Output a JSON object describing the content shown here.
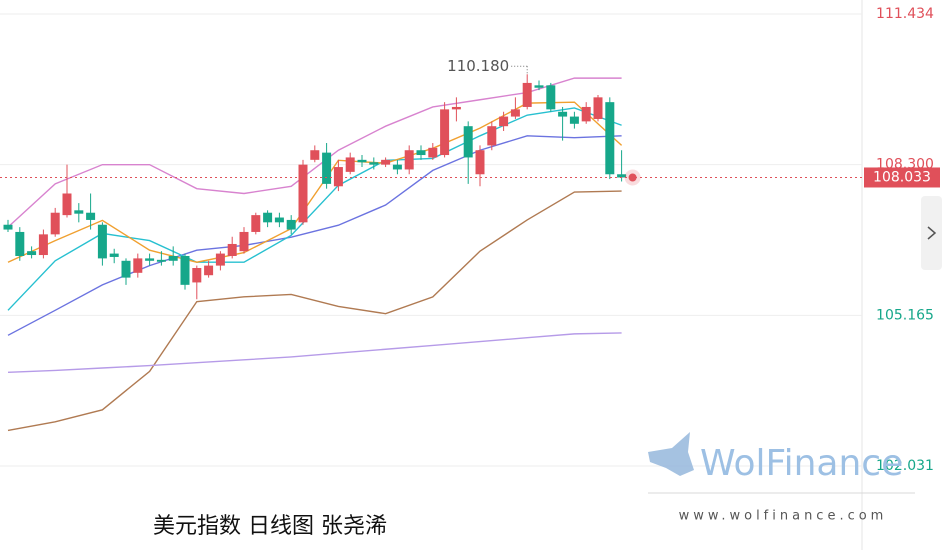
{
  "chart_data": {
    "type": "candlestick",
    "caption": "美元指数 日线图 张尧浠",
    "watermark": "WolFinance",
    "watermark_url": "www.wolfinance.com",
    "max_label": "110.180",
    "last_label": "108.033",
    "up_color": "#e0505a",
    "down_color": "#16a78a",
    "ylim": [
      100.284,
      111.725
    ],
    "yticks": [
      111.434,
      {
        "value": 108.3,
        "label": "108.300"
      },
      105.165,
      102.031
    ],
    "grid": true,
    "open": [
      107.05,
      106.9,
      106.5,
      106.42,
      106.85,
      107.25,
      107.35,
      107.3,
      107.05,
      106.45,
      106.3,
      106.05,
      106.35,
      106.32,
      106.4,
      106.4,
      105.85,
      106.0,
      106.2,
      106.4,
      106.5,
      106.9,
      107.3,
      107.2,
      107.15,
      107.1,
      108.4,
      108.55,
      107.85,
      108.15,
      108.4,
      108.35,
      108.3,
      108.3,
      108.2,
      108.6,
      108.45,
      108.5,
      109.45,
      109.1,
      108.1,
      108.7,
      109.1,
      109.3,
      109.5,
      109.95,
      109.95,
      109.4,
      109.3,
      109.2,
      109.25,
      109.6,
      108.1
    ],
    "high": [
      107.15,
      107.0,
      106.6,
      106.95,
      107.4,
      108.3,
      107.5,
      107.7,
      107.1,
      106.55,
      106.35,
      106.45,
      106.45,
      106.5,
      106.6,
      106.45,
      106.2,
      106.3,
      106.5,
      106.8,
      107.0,
      107.3,
      107.35,
      107.3,
      107.25,
      108.4,
      108.7,
      108.75,
      108.4,
      108.55,
      108.5,
      108.45,
      108.45,
      108.4,
      108.7,
      108.7,
      108.75,
      109.6,
      109.7,
      109.2,
      108.7,
      109.2,
      109.4,
      109.7,
      110.18,
      110.05,
      110.0,
      109.5,
      109.4,
      109.6,
      109.75,
      109.7,
      108.6
    ],
    "low": [
      106.9,
      106.3,
      106.35,
      106.35,
      106.8,
      107.2,
      107.1,
      106.95,
      106.2,
      106.25,
      105.8,
      105.95,
      106.2,
      106.2,
      106.2,
      105.7,
      105.5,
      105.95,
      106.1,
      106.35,
      106.45,
      106.85,
      107.0,
      107.0,
      106.85,
      107.05,
      108.35,
      107.8,
      107.75,
      108.1,
      108.25,
      108.2,
      108.25,
      108.1,
      108.1,
      108.4,
      108.4,
      108.45,
      109.2,
      107.9,
      107.85,
      108.6,
      109.0,
      109.25,
      109.45,
      109.85,
      109.4,
      108.8,
      109.05,
      109.15,
      109.2,
      108.0,
      107.95
    ],
    "close": [
      106.95,
      106.4,
      106.42,
      106.85,
      107.3,
      107.7,
      107.28,
      107.15,
      106.35,
      106.38,
      105.95,
      106.35,
      106.3,
      106.28,
      106.3,
      105.8,
      106.15,
      106.2,
      106.45,
      106.65,
      106.9,
      107.25,
      107.1,
      107.1,
      106.95,
      108.3,
      108.6,
      107.9,
      108.25,
      108.45,
      108.35,
      108.3,
      108.4,
      108.2,
      108.6,
      108.5,
      108.65,
      109.45,
      109.5,
      108.45,
      108.6,
      109.1,
      109.3,
      109.45,
      110.0,
      109.9,
      109.45,
      109.3,
      109.15,
      109.5,
      109.7,
      108.1,
      108.033
    ],
    "series": [
      {
        "color": "#d883cf",
        "x": [
          0,
          4,
          8,
          12,
          16,
          20,
          24,
          28,
          32,
          36,
          40,
          44,
          48,
          52
        ],
        "values": [
          107.0,
          107.9,
          108.3,
          108.3,
          107.8,
          107.7,
          107.85,
          108.6,
          109.1,
          109.5,
          109.65,
          109.8,
          110.1,
          110.1
        ]
      },
      {
        "color": "#b07a52",
        "x": [
          0,
          4,
          8,
          12,
          16,
          20,
          24,
          28,
          32,
          36,
          40,
          44,
          48,
          52
        ],
        "values": [
          102.77,
          102.95,
          103.2,
          104.0,
          105.45,
          105.55,
          105.6,
          105.35,
          105.2,
          105.55,
          106.5,
          107.15,
          107.73,
          107.75
        ]
      },
      {
        "color": "#b69be8",
        "x": [
          0,
          4,
          8,
          12,
          16,
          20,
          24,
          28,
          32,
          36,
          40,
          44,
          48,
          52
        ],
        "values": [
          103.98,
          104.02,
          104.07,
          104.12,
          104.18,
          104.24,
          104.3,
          104.38,
          104.46,
          104.54,
          104.62,
          104.7,
          104.78,
          104.8
        ]
      },
      {
        "color": "#6b73e0",
        "x": [
          0,
          4,
          8,
          12,
          16,
          20,
          24,
          28,
          32,
          36,
          40,
          44,
          48,
          52
        ],
        "values": [
          104.75,
          105.27,
          105.8,
          106.2,
          106.52,
          106.62,
          106.79,
          107.04,
          107.46,
          108.18,
          108.6,
          108.9,
          108.86,
          108.9
        ]
      },
      {
        "color": "#27c0d0",
        "x": [
          0,
          4,
          8,
          12,
          16,
          20,
          24,
          28,
          32,
          36,
          40,
          44,
          48,
          52
        ],
        "values": [
          105.27,
          106.3,
          106.87,
          106.72,
          106.27,
          106.27,
          106.83,
          107.87,
          108.39,
          108.43,
          108.9,
          109.33,
          109.48,
          109.12
        ]
      },
      {
        "color": "#f0a030",
        "x": [
          0,
          4,
          8,
          12,
          16,
          20,
          24,
          28,
          32,
          36,
          40,
          44,
          48,
          52
        ],
        "values": [
          106.27,
          106.72,
          107.14,
          106.52,
          106.27,
          106.47,
          106.97,
          108.39,
          108.33,
          108.64,
          109.06,
          109.58,
          109.6,
          108.7
        ]
      }
    ]
  }
}
